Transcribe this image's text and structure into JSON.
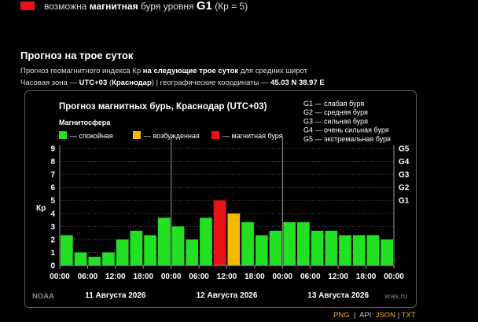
{
  "top_legend": {
    "color": "#e8121a",
    "text_prefix": "возможна",
    "text_bold": "магнитная",
    "text_mid": "буря уровня",
    "level": "G1",
    "kp_note": "(Кр = 5)"
  },
  "section": {
    "title": "Прогноз на трое суток",
    "desc_prefix": "Прогноз геомагнитного индекса Кр",
    "desc_bold": "на следующие трое суток",
    "desc_suffix": "для средних широт",
    "tz_prefix": "Часовая зона —",
    "tz_value": "UTC+03",
    "tz_city": "Краснодар",
    "tz_geo": "| географические координаты —",
    "tz_coords": "45.03 N 38.97 E"
  },
  "chart_data": {
    "type": "bar",
    "title": "Прогноз магнитных бурь, Краснодар (UTC+03)",
    "subtitle": "Магнитосфера",
    "ylabel": "Кр",
    "ylim": [
      0,
      9
    ],
    "yticks": [
      "0",
      "1",
      "2",
      "3",
      "4",
      "5",
      "6",
      "7",
      "8",
      "9"
    ],
    "right_ticks": [
      {
        "value": 5,
        "label": "G1"
      },
      {
        "value": 6,
        "label": "G2"
      },
      {
        "value": 7,
        "label": "G3"
      },
      {
        "value": 8,
        "label": "G4"
      },
      {
        "value": 9,
        "label": "G5"
      }
    ],
    "legend": [
      {
        "label": "— спокойная",
        "color": "#22e022"
      },
      {
        "label": "— возбужденная",
        "color": "#f5b800"
      },
      {
        "label": "— магнитная буря",
        "color": "#e8121a"
      }
    ],
    "g_legend": [
      "G1 — слабая буря",
      "G2 — средняя буря",
      "G3 — сильная буря",
      "G4 — очень сильная буря",
      "G5 — экстремальная буря"
    ],
    "time_labels": [
      "00:00",
      "06:00",
      "12:00",
      "18:00",
      "00:00",
      "06:00",
      "12:00",
      "18:00",
      "00:00",
      "06:00",
      "12:00",
      "18:00",
      "00:00"
    ],
    "days": [
      "11 Августа 2026",
      "12 Августа 2026",
      "13 Августа 2026"
    ],
    "values": [
      2.33,
      1.0,
      0.67,
      1.0,
      2.0,
      2.67,
      2.33,
      3.67,
      3.0,
      2.0,
      3.67,
      5.0,
      4.0,
      3.33,
      2.33,
      2.67,
      3.33,
      3.33,
      2.67,
      2.67,
      2.33,
      2.33,
      2.33,
      2.0
    ],
    "levels": [
      "quiet",
      "quiet",
      "quiet",
      "quiet",
      "quiet",
      "quiet",
      "quiet",
      "quiet",
      "quiet",
      "quiet",
      "quiet",
      "storm",
      "active",
      "quiet",
      "quiet",
      "quiet",
      "quiet",
      "quiet",
      "quiet",
      "quiet",
      "quiet",
      "quiet",
      "quiet",
      "quiet"
    ],
    "level_colors": {
      "quiet": "#22e022",
      "active": "#f5b800",
      "storm": "#e8121a"
    },
    "source_left": "NOAA",
    "source_right": "xras.ru"
  },
  "footer": {
    "png": "PNG",
    "api_label": "API:",
    "json": "JSON",
    "txt": "TXT",
    "sep": "|",
    "sep2": "|"
  }
}
